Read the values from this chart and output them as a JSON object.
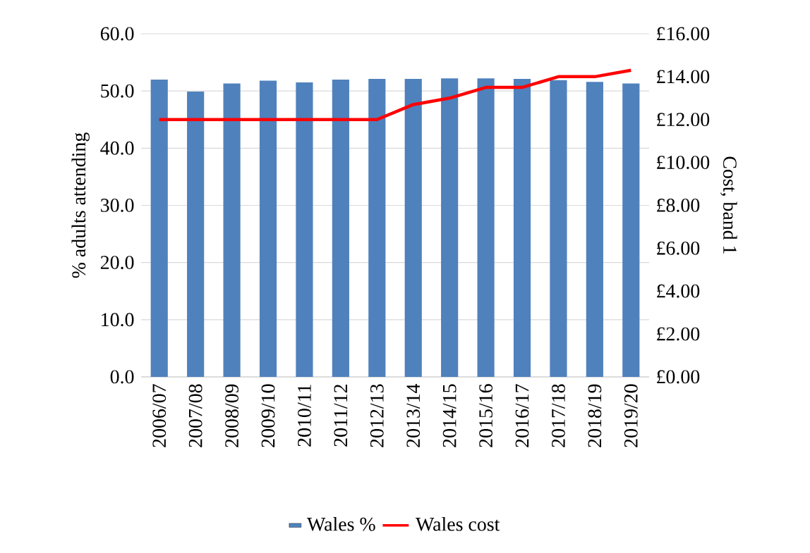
{
  "chart_data": {
    "type": "bar",
    "ylabel": "% adults attending",
    "y2label": "Cost, band 1",
    "categories": [
      "2006/07",
      "2007/08",
      "2008/09",
      "2009/10",
      "2010/11",
      "2011/12",
      "2012/13",
      "2013/14",
      "2014/15",
      "2015/16",
      "2016/17",
      "2017/18",
      "2018/19",
      "2019/20"
    ],
    "series": [
      {
        "name": "Wales %",
        "color": "#4f81bd",
        "values": [
          52.0,
          49.9,
          51.3,
          51.8,
          51.5,
          52.0,
          52.1,
          52.1,
          52.2,
          52.2,
          52.1,
          51.9,
          51.6,
          51.3
        ]
      },
      {
        "name": "Wales cost",
        "type": "line",
        "axis": "y2",
        "color": "#ff0000",
        "values": [
          12.0,
          12.0,
          12.0,
          12.0,
          12.0,
          12.0,
          12.0,
          12.7,
          13.0,
          13.5,
          13.5,
          14.0,
          14.0,
          14.3
        ]
      }
    ],
    "ylim": [
      0,
      60
    ],
    "yticks": [
      {
        "value": 0,
        "label": "0.0"
      },
      {
        "value": 10,
        "label": "10.0"
      },
      {
        "value": 20,
        "label": "20.0"
      },
      {
        "value": 30,
        "label": "30.0"
      },
      {
        "value": 40,
        "label": "40.0"
      },
      {
        "value": 50,
        "label": "50.0"
      },
      {
        "value": 60,
        "label": "60.0"
      }
    ],
    "y2lim": [
      0,
      16
    ],
    "y2ticks": [
      {
        "value": 0,
        "label": "£0.00"
      },
      {
        "value": 2,
        "label": "£2.00"
      },
      {
        "value": 4,
        "label": "£4.00"
      },
      {
        "value": 6,
        "label": "£6.00"
      },
      {
        "value": 8,
        "label": "£8.00"
      },
      {
        "value": 10,
        "label": "£10.00"
      },
      {
        "value": 12,
        "label": "£12.00"
      },
      {
        "value": 14,
        "label": "£14.00"
      },
      {
        "value": 16,
        "label": "£16.00"
      }
    ],
    "grid": "y",
    "legend": "bottom"
  }
}
